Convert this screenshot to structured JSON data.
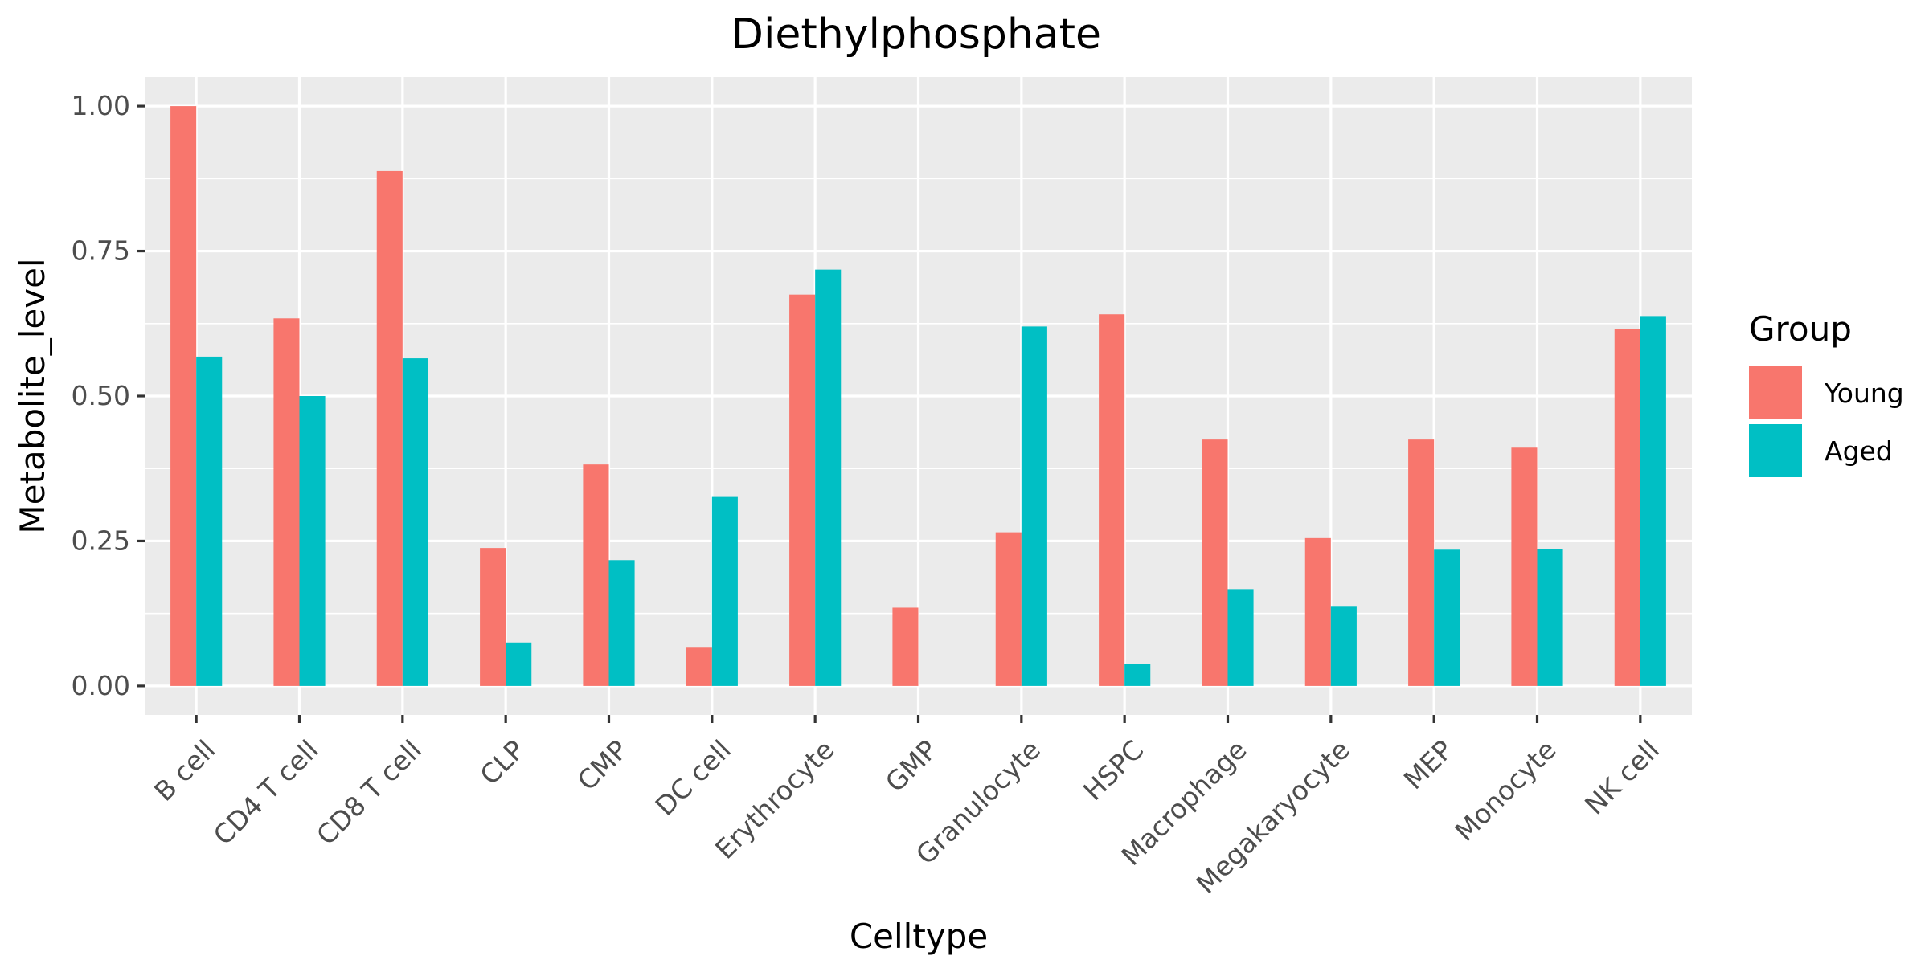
{
  "chart_data": {
    "type": "bar",
    "title": "Diethylphosphate",
    "xlabel": "Celltype",
    "ylabel": "Metabolite_level",
    "ylim": [
      -0.05,
      1.05
    ],
    "yticks": [
      0.0,
      0.25,
      0.5,
      0.75,
      1.0
    ],
    "ytick_labels": [
      "0.00",
      "0.25",
      "0.50",
      "0.75",
      "1.00"
    ],
    "grid": true,
    "legend": {
      "title": "Group",
      "placement": "right"
    },
    "categories": [
      "B cell",
      "CD4 T cell",
      "CD8 T cell",
      "CLP",
      "CMP",
      "DC cell",
      "Erythrocyte",
      "GMP",
      "Granulocyte",
      "HSPC",
      "Macrophage",
      "Megakaryocyte",
      "MEP",
      "Monocyte",
      "NK cell"
    ],
    "series": [
      {
        "name": "Young",
        "color": "#F8766D",
        "values": [
          1.0,
          0.634,
          0.888,
          0.238,
          0.382,
          0.066,
          0.675,
          0.135,
          0.265,
          0.641,
          0.425,
          0.255,
          0.425,
          0.411,
          0.616
        ]
      },
      {
        "name": "Aged",
        "color": "#00BFC4",
        "values": [
          0.568,
          0.5,
          0.565,
          0.075,
          0.217,
          0.326,
          0.718,
          0.0,
          0.62,
          0.038,
          0.167,
          0.138,
          0.235,
          0.236,
          0.638
        ]
      }
    ]
  }
}
